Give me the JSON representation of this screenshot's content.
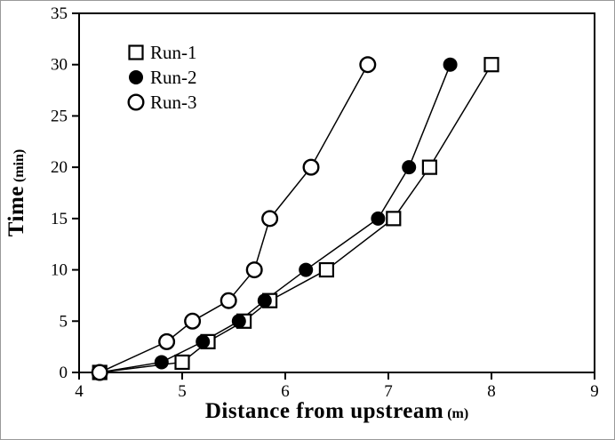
{
  "chart_data": {
    "type": "line",
    "title": "",
    "xlabel": "Distance from upstream",
    "xlabel_unit": "(m)",
    "ylabel": "Time",
    "ylabel_unit": "(min)",
    "xlim": [
      4,
      9
    ],
    "ylim": [
      0,
      35
    ],
    "xticks": [
      4,
      5,
      6,
      7,
      8,
      9
    ],
    "yticks": [
      0,
      5,
      10,
      15,
      20,
      25,
      30,
      35
    ],
    "grid": false,
    "legend_position": "top-left-inside",
    "line_color": "#000000",
    "background_color": "#ffffff",
    "series": [
      {
        "name": "Run-1",
        "marker": "open-square",
        "points": [
          [
            4.2,
            0
          ],
          [
            5.0,
            1
          ],
          [
            5.25,
            3
          ],
          [
            5.6,
            5
          ],
          [
            5.85,
            7
          ],
          [
            6.4,
            10
          ],
          [
            7.05,
            15
          ],
          [
            7.4,
            20
          ],
          [
            8.0,
            30
          ]
        ]
      },
      {
        "name": "Run-2",
        "marker": "filled-circle",
        "points": [
          [
            4.2,
            0
          ],
          [
            4.8,
            1
          ],
          [
            5.2,
            3
          ],
          [
            5.55,
            5
          ],
          [
            5.8,
            7
          ],
          [
            6.2,
            10
          ],
          [
            6.9,
            15
          ],
          [
            7.2,
            20
          ],
          [
            7.6,
            30
          ]
        ]
      },
      {
        "name": "Run-3",
        "marker": "open-circle",
        "points": [
          [
            4.2,
            0
          ],
          [
            4.85,
            3
          ],
          [
            5.1,
            5
          ],
          [
            5.45,
            7
          ],
          [
            5.7,
            10
          ],
          [
            5.85,
            15
          ],
          [
            6.25,
            20
          ],
          [
            6.8,
            30
          ]
        ]
      }
    ]
  }
}
